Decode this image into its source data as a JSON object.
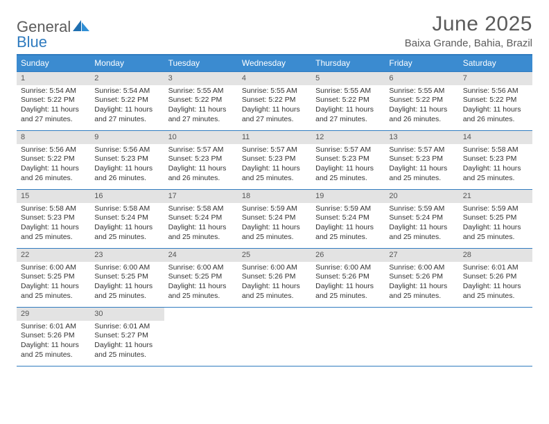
{
  "brand": {
    "word1": "General",
    "word2": "Blue"
  },
  "title": "June 2025",
  "location": "Baixa Grande, Bahia, Brazil",
  "colors": {
    "accent": "#3b8bd0",
    "accent_border": "#2f7bbf",
    "daynum_bg": "#e3e3e3",
    "text_muted": "#5b5b5b"
  },
  "daysOfWeek": [
    "Sunday",
    "Monday",
    "Tuesday",
    "Wednesday",
    "Thursday",
    "Friday",
    "Saturday"
  ],
  "weeks": [
    [
      {
        "n": "1",
        "sr": "Sunrise: 5:54 AM",
        "ss": "Sunset: 5:22 PM",
        "d1": "Daylight: 11 hours",
        "d2": "and 27 minutes."
      },
      {
        "n": "2",
        "sr": "Sunrise: 5:54 AM",
        "ss": "Sunset: 5:22 PM",
        "d1": "Daylight: 11 hours",
        "d2": "and 27 minutes."
      },
      {
        "n": "3",
        "sr": "Sunrise: 5:55 AM",
        "ss": "Sunset: 5:22 PM",
        "d1": "Daylight: 11 hours",
        "d2": "and 27 minutes."
      },
      {
        "n": "4",
        "sr": "Sunrise: 5:55 AM",
        "ss": "Sunset: 5:22 PM",
        "d1": "Daylight: 11 hours",
        "d2": "and 27 minutes."
      },
      {
        "n": "5",
        "sr": "Sunrise: 5:55 AM",
        "ss": "Sunset: 5:22 PM",
        "d1": "Daylight: 11 hours",
        "d2": "and 27 minutes."
      },
      {
        "n": "6",
        "sr": "Sunrise: 5:55 AM",
        "ss": "Sunset: 5:22 PM",
        "d1": "Daylight: 11 hours",
        "d2": "and 26 minutes."
      },
      {
        "n": "7",
        "sr": "Sunrise: 5:56 AM",
        "ss": "Sunset: 5:22 PM",
        "d1": "Daylight: 11 hours",
        "d2": "and 26 minutes."
      }
    ],
    [
      {
        "n": "8",
        "sr": "Sunrise: 5:56 AM",
        "ss": "Sunset: 5:22 PM",
        "d1": "Daylight: 11 hours",
        "d2": "and 26 minutes."
      },
      {
        "n": "9",
        "sr": "Sunrise: 5:56 AM",
        "ss": "Sunset: 5:23 PM",
        "d1": "Daylight: 11 hours",
        "d2": "and 26 minutes."
      },
      {
        "n": "10",
        "sr": "Sunrise: 5:57 AM",
        "ss": "Sunset: 5:23 PM",
        "d1": "Daylight: 11 hours",
        "d2": "and 26 minutes."
      },
      {
        "n": "11",
        "sr": "Sunrise: 5:57 AM",
        "ss": "Sunset: 5:23 PM",
        "d1": "Daylight: 11 hours",
        "d2": "and 25 minutes."
      },
      {
        "n": "12",
        "sr": "Sunrise: 5:57 AM",
        "ss": "Sunset: 5:23 PM",
        "d1": "Daylight: 11 hours",
        "d2": "and 25 minutes."
      },
      {
        "n": "13",
        "sr": "Sunrise: 5:57 AM",
        "ss": "Sunset: 5:23 PM",
        "d1": "Daylight: 11 hours",
        "d2": "and 25 minutes."
      },
      {
        "n": "14",
        "sr": "Sunrise: 5:58 AM",
        "ss": "Sunset: 5:23 PM",
        "d1": "Daylight: 11 hours",
        "d2": "and 25 minutes."
      }
    ],
    [
      {
        "n": "15",
        "sr": "Sunrise: 5:58 AM",
        "ss": "Sunset: 5:23 PM",
        "d1": "Daylight: 11 hours",
        "d2": "and 25 minutes."
      },
      {
        "n": "16",
        "sr": "Sunrise: 5:58 AM",
        "ss": "Sunset: 5:24 PM",
        "d1": "Daylight: 11 hours",
        "d2": "and 25 minutes."
      },
      {
        "n": "17",
        "sr": "Sunrise: 5:58 AM",
        "ss": "Sunset: 5:24 PM",
        "d1": "Daylight: 11 hours",
        "d2": "and 25 minutes."
      },
      {
        "n": "18",
        "sr": "Sunrise: 5:59 AM",
        "ss": "Sunset: 5:24 PM",
        "d1": "Daylight: 11 hours",
        "d2": "and 25 minutes."
      },
      {
        "n": "19",
        "sr": "Sunrise: 5:59 AM",
        "ss": "Sunset: 5:24 PM",
        "d1": "Daylight: 11 hours",
        "d2": "and 25 minutes."
      },
      {
        "n": "20",
        "sr": "Sunrise: 5:59 AM",
        "ss": "Sunset: 5:24 PM",
        "d1": "Daylight: 11 hours",
        "d2": "and 25 minutes."
      },
      {
        "n": "21",
        "sr": "Sunrise: 5:59 AM",
        "ss": "Sunset: 5:25 PM",
        "d1": "Daylight: 11 hours",
        "d2": "and 25 minutes."
      }
    ],
    [
      {
        "n": "22",
        "sr": "Sunrise: 6:00 AM",
        "ss": "Sunset: 5:25 PM",
        "d1": "Daylight: 11 hours",
        "d2": "and 25 minutes."
      },
      {
        "n": "23",
        "sr": "Sunrise: 6:00 AM",
        "ss": "Sunset: 5:25 PM",
        "d1": "Daylight: 11 hours",
        "d2": "and 25 minutes."
      },
      {
        "n": "24",
        "sr": "Sunrise: 6:00 AM",
        "ss": "Sunset: 5:25 PM",
        "d1": "Daylight: 11 hours",
        "d2": "and 25 minutes."
      },
      {
        "n": "25",
        "sr": "Sunrise: 6:00 AM",
        "ss": "Sunset: 5:26 PM",
        "d1": "Daylight: 11 hours",
        "d2": "and 25 minutes."
      },
      {
        "n": "26",
        "sr": "Sunrise: 6:00 AM",
        "ss": "Sunset: 5:26 PM",
        "d1": "Daylight: 11 hours",
        "d2": "and 25 minutes."
      },
      {
        "n": "27",
        "sr": "Sunrise: 6:00 AM",
        "ss": "Sunset: 5:26 PM",
        "d1": "Daylight: 11 hours",
        "d2": "and 25 minutes."
      },
      {
        "n": "28",
        "sr": "Sunrise: 6:01 AM",
        "ss": "Sunset: 5:26 PM",
        "d1": "Daylight: 11 hours",
        "d2": "and 25 minutes."
      }
    ],
    [
      {
        "n": "29",
        "sr": "Sunrise: 6:01 AM",
        "ss": "Sunset: 5:26 PM",
        "d1": "Daylight: 11 hours",
        "d2": "and 25 minutes."
      },
      {
        "n": "30",
        "sr": "Sunrise: 6:01 AM",
        "ss": "Sunset: 5:27 PM",
        "d1": "Daylight: 11 hours",
        "d2": "and 25 minutes."
      },
      {
        "empty": true
      },
      {
        "empty": true
      },
      {
        "empty": true
      },
      {
        "empty": true
      },
      {
        "empty": true
      }
    ]
  ]
}
